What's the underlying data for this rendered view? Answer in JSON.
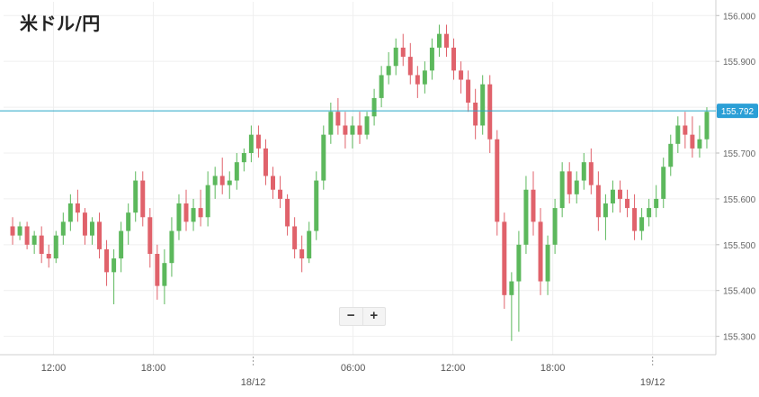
{
  "title": "米ドル/円",
  "zoom": {
    "minus_label": "−",
    "plus_label": "+"
  },
  "colors": {
    "up": "#5cb85c",
    "down": "#e0626b",
    "price_line": "#27a6c8",
    "price_badge": "#2b9fd6",
    "grid": "#efefef"
  },
  "chart_data": {
    "type": "candlestick",
    "title": "米ドル/円",
    "ylim": [
      155.26,
      156.03
    ],
    "y_ticks": [
      "155.300",
      "155.400",
      "155.500",
      "155.600",
      "155.700",
      "155.800",
      "155.900",
      "156.000"
    ],
    "x_ticks": [
      {
        "t": 12,
        "label": "12:00"
      },
      {
        "t": 18,
        "label": "18:00"
      },
      {
        "t": 24,
        "label": "18/12"
      },
      {
        "t": 30,
        "label": "06:00"
      },
      {
        "t": 36,
        "label": "12:00"
      },
      {
        "t": 42,
        "label": "18:00"
      },
      {
        "t": 48,
        "label": "19/12"
      }
    ],
    "current_price": "155.792",
    "candles": [
      [
        155.54,
        155.56,
        155.5,
        155.52
      ],
      [
        155.52,
        155.55,
        155.51,
        155.54
      ],
      [
        155.54,
        155.55,
        155.49,
        155.5
      ],
      [
        155.5,
        155.53,
        155.48,
        155.52
      ],
      [
        155.52,
        155.54,
        155.46,
        155.48
      ],
      [
        155.48,
        155.5,
        155.45,
        155.47
      ],
      [
        155.47,
        155.53,
        155.46,
        155.52
      ],
      [
        155.52,
        155.57,
        155.5,
        155.55
      ],
      [
        155.55,
        155.61,
        155.53,
        155.59
      ],
      [
        155.59,
        155.62,
        155.55,
        155.57
      ],
      [
        155.57,
        155.58,
        155.5,
        155.52
      ],
      [
        155.52,
        155.56,
        155.5,
        155.55
      ],
      [
        155.55,
        155.57,
        155.47,
        155.49
      ],
      [
        155.49,
        155.51,
        155.41,
        155.44
      ],
      [
        155.44,
        155.49,
        155.37,
        155.47
      ],
      [
        155.47,
        155.55,
        155.44,
        155.53
      ],
      [
        155.53,
        155.59,
        155.5,
        155.57
      ],
      [
        155.57,
        155.66,
        155.55,
        155.64
      ],
      [
        155.64,
        155.66,
        155.54,
        155.56
      ],
      [
        155.56,
        155.58,
        155.45,
        155.48
      ],
      [
        155.48,
        155.5,
        155.38,
        155.41
      ],
      [
        155.41,
        155.49,
        155.37,
        155.46
      ],
      [
        155.46,
        155.56,
        155.43,
        155.53
      ],
      [
        155.53,
        155.61,
        155.51,
        155.59
      ],
      [
        155.59,
        155.62,
        155.53,
        155.55
      ],
      [
        155.55,
        155.6,
        155.53,
        155.58
      ],
      [
        155.58,
        155.62,
        155.54,
        155.56
      ],
      [
        155.56,
        155.66,
        155.54,
        155.63
      ],
      [
        155.63,
        155.67,
        155.6,
        155.65
      ],
      [
        155.65,
        155.69,
        155.61,
        155.63
      ],
      [
        155.63,
        155.66,
        155.6,
        155.64
      ],
      [
        155.64,
        155.7,
        155.62,
        155.68
      ],
      [
        155.68,
        155.71,
        155.66,
        155.7
      ],
      [
        155.7,
        155.76,
        155.68,
        155.74
      ],
      [
        155.74,
        155.76,
        155.69,
        155.71
      ],
      [
        155.71,
        155.73,
        155.63,
        155.65
      ],
      [
        155.65,
        155.67,
        155.6,
        155.62
      ],
      [
        155.62,
        155.65,
        155.58,
        155.6
      ],
      [
        155.6,
        155.61,
        155.52,
        155.54
      ],
      [
        155.54,
        155.56,
        155.47,
        155.49
      ],
      [
        155.49,
        155.52,
        155.44,
        155.47
      ],
      [
        155.47,
        155.55,
        155.46,
        155.53
      ],
      [
        155.53,
        155.66,
        155.51,
        155.64
      ],
      [
        155.64,
        155.76,
        155.62,
        155.74
      ],
      [
        155.74,
        155.81,
        155.72,
        155.79
      ],
      [
        155.79,
        155.82,
        155.74,
        155.76
      ],
      [
        155.76,
        155.79,
        155.71,
        155.74
      ],
      [
        155.74,
        155.78,
        155.71,
        155.76
      ],
      [
        155.76,
        155.79,
        155.72,
        155.74
      ],
      [
        155.74,
        155.79,
        155.73,
        155.78
      ],
      [
        155.78,
        155.84,
        155.76,
        155.82
      ],
      [
        155.82,
        155.89,
        155.8,
        155.87
      ],
      [
        155.87,
        155.92,
        155.85,
        155.89
      ],
      [
        155.89,
        155.95,
        155.87,
        155.93
      ],
      [
        155.93,
        155.96,
        155.89,
        155.91
      ],
      [
        155.91,
        155.94,
        155.85,
        155.87
      ],
      [
        155.87,
        155.89,
        155.82,
        155.85
      ],
      [
        155.85,
        155.9,
        155.83,
        155.88
      ],
      [
        155.88,
        155.95,
        155.86,
        155.93
      ],
      [
        155.93,
        155.98,
        155.91,
        155.96
      ],
      [
        155.96,
        155.98,
        155.91,
        155.93
      ],
      [
        155.93,
        155.95,
        155.86,
        155.88
      ],
      [
        155.88,
        155.9,
        155.83,
        155.86
      ],
      [
        155.86,
        155.88,
        155.79,
        155.81
      ],
      [
        155.81,
        155.84,
        155.73,
        155.76
      ],
      [
        155.76,
        155.87,
        155.74,
        155.85
      ],
      [
        155.85,
        155.87,
        155.7,
        155.73
      ],
      [
        155.73,
        155.75,
        155.52,
        155.55
      ],
      [
        155.55,
        155.57,
        155.36,
        155.39
      ],
      [
        155.39,
        155.44,
        155.29,
        155.42
      ],
      [
        155.42,
        155.53,
        155.31,
        155.5
      ],
      [
        155.5,
        155.65,
        155.48,
        155.62
      ],
      [
        155.62,
        155.66,
        155.52,
        155.55
      ],
      [
        155.55,
        155.58,
        155.39,
        155.42
      ],
      [
        155.42,
        155.52,
        155.39,
        155.5
      ],
      [
        155.5,
        155.6,
        155.48,
        155.58
      ],
      [
        155.58,
        155.68,
        155.56,
        155.66
      ],
      [
        155.66,
        155.68,
        155.59,
        155.61
      ],
      [
        155.61,
        155.66,
        155.59,
        155.64
      ],
      [
        155.64,
        155.7,
        155.62,
        155.68
      ],
      [
        155.68,
        155.71,
        155.61,
        155.63
      ],
      [
        155.63,
        155.66,
        155.53,
        155.56
      ],
      [
        155.56,
        155.61,
        155.51,
        155.59
      ],
      [
        155.59,
        155.64,
        155.57,
        155.62
      ],
      [
        155.62,
        155.64,
        155.57,
        155.6
      ],
      [
        155.6,
        155.62,
        155.56,
        155.58
      ],
      [
        155.58,
        155.61,
        155.51,
        155.53
      ],
      [
        155.53,
        155.58,
        155.51,
        155.56
      ],
      [
        155.56,
        155.6,
        155.54,
        155.58
      ],
      [
        155.58,
        155.63,
        155.56,
        155.6
      ],
      [
        155.6,
        155.69,
        155.58,
        155.67
      ],
      [
        155.67,
        155.74,
        155.65,
        155.72
      ],
      [
        155.72,
        155.78,
        155.7,
        155.76
      ],
      [
        155.76,
        155.79,
        155.71,
        155.74
      ],
      [
        155.74,
        155.78,
        155.69,
        155.71
      ],
      [
        155.71,
        155.76,
        155.69,
        155.73
      ],
      [
        155.73,
        155.8,
        155.71,
        155.79
      ]
    ]
  }
}
